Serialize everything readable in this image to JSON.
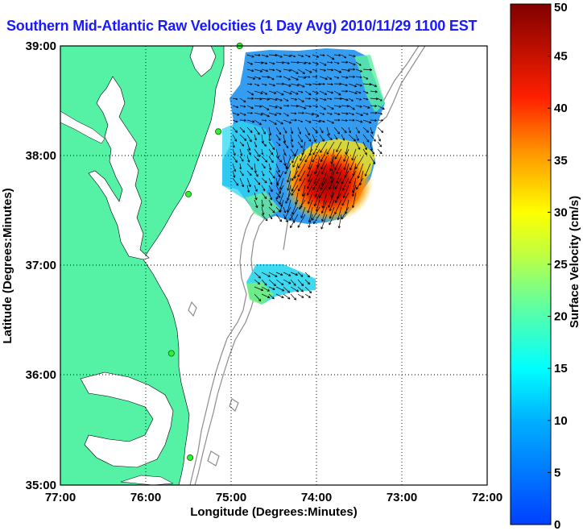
{
  "title": "Southern Mid-Atlantic Raw Velocities (1 Day Avg) 2010/11/29 1100 EST",
  "map": {
    "xlabel": "Longitude (Degrees:Minutes)",
    "ylabel": "Latitude (Degrees:Minutes)",
    "x_ticks": [
      "77:00",
      "76:00",
      "75:00",
      "74:00",
      "73:00",
      "72:00"
    ],
    "y_ticks": [
      "39:00",
      "38:00",
      "37:00",
      "36:00",
      "35:00"
    ],
    "lon_range": [
      -77,
      -72
    ],
    "lat_range": [
      35,
      39
    ],
    "grid": "dotted",
    "land_color": "#55f2a6",
    "bathymetry_color": "#8c8c8c"
  },
  "colorbar": {
    "label": "Surface Velocity (cm/s)",
    "min": 0,
    "max": 50,
    "ticks": [
      "50",
      "45",
      "40",
      "35",
      "30",
      "25",
      "20",
      "15",
      "10",
      "5",
      "0"
    ],
    "colors": [
      "#800000",
      "#ff0000",
      "#ff8000",
      "#ffff00",
      "#80ff80",
      "#00ffff",
      "#0080ff",
      "#0000ff"
    ]
  },
  "stations": [
    {
      "name": "station",
      "lon": -74.9,
      "lat": 39.0
    },
    {
      "name": "station",
      "lon": -75.15,
      "lat": 38.22
    },
    {
      "name": "station",
      "lon": -75.5,
      "lat": 37.65
    },
    {
      "name": "station",
      "lon": -75.7,
      "lat": 36.2
    },
    {
      "name": "station",
      "lon": -75.48,
      "lat": 35.25
    }
  ]
}
